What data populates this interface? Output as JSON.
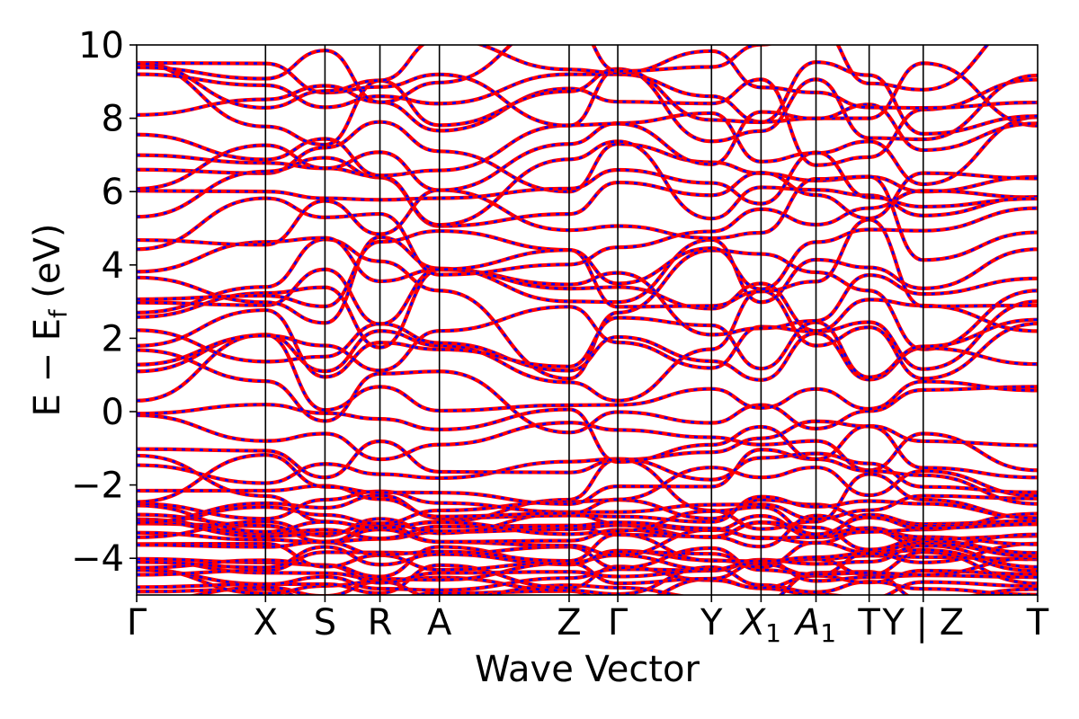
{
  "chart_data": {
    "type": "line",
    "title": "",
    "xlabel": "Wave Vector",
    "ylabel": "E − E",
    "ylabel_sub": "f",
    "ylabel_unit": " (eV)",
    "ylim": [
      -5,
      10
    ],
    "yticks": [
      10,
      8,
      6,
      4,
      2,
      0,
      -2,
      -4
    ],
    "ytick_labels": [
      "10",
      "8",
      "6",
      "4",
      "2",
      "0",
      "−2",
      "−4"
    ],
    "xlim": [
      0,
      1
    ],
    "kpath": [
      {
        "label": "Γ",
        "sub": "",
        "x": 0.0
      },
      {
        "label": "X",
        "sub": "",
        "x": 0.143
      },
      {
        "label": "S",
        "sub": "",
        "x": 0.209
      },
      {
        "label": "R",
        "sub": "",
        "x": 0.27
      },
      {
        "label": "A",
        "sub": "",
        "x": 0.336
      },
      {
        "label": "Z",
        "sub": "",
        "x": 0.48
      },
      {
        "label": "Γ",
        "sub": "",
        "x": 0.534
      },
      {
        "label": "Y",
        "sub": "",
        "x": 0.638
      },
      {
        "label": "X",
        "sub": "1",
        "x": 0.693
      },
      {
        "label": "A",
        "sub": "1",
        "x": 0.754
      },
      {
        "label": "T",
        "sub": "",
        "x": 0.813
      },
      {
        "label": "Y | Z",
        "sub": "",
        "x": 0.873
      },
      {
        "label": "T",
        "sub": "",
        "x": 1.0
      }
    ],
    "grid": false,
    "legend": "none",
    "series_colors": {
      "dft": "#ff0000",
      "model": "#0000ff"
    },
    "representative_bands": [
      {
        "x": [
          0,
          0.143,
          0.209,
          0.27,
          0.336,
          0.48,
          0.534,
          0.638,
          0.693,
          0.754,
          0.813,
          0.873,
          1.0
        ],
        "y": [
          0.3,
          2.1,
          1.1,
          2.2,
          1.8,
          0.8,
          0.3,
          1.7,
          3.3,
          1.8,
          2.3,
          0.9,
          2.4
        ]
      },
      {
        "x": [
          0,
          0.143,
          0.209,
          0.27,
          0.336,
          0.48,
          0.534,
          0.638,
          0.693,
          0.754,
          0.813,
          0.873,
          1.0
        ],
        "y": [
          2.7,
          3.4,
          4.7,
          4.1,
          3.3,
          0.9,
          2.7,
          4.4,
          4.3,
          3.8,
          3.3,
          1.7,
          3.3
        ]
      },
      {
        "x": [
          0,
          0.143,
          0.209,
          0.27,
          0.336,
          0.48,
          0.534,
          0.638,
          0.693,
          0.754,
          0.813,
          0.873,
          1.0
        ],
        "y": [
          -0.1,
          -0.8,
          -0.6,
          -1.3,
          -0.9,
          -0.3,
          -0.5,
          -0.7,
          -0.9,
          -0.8,
          -1.6,
          -0.6,
          -1.6
        ]
      },
      {
        "x": [
          0,
          0.143,
          0.209,
          0.27,
          0.336,
          0.48,
          0.534,
          0.638,
          0.693,
          0.754,
          0.813,
          0.873,
          1.0
        ],
        "y": [
          6.6,
          6.5,
          7.2,
          7.9,
          7.1,
          6.0,
          7.3,
          6.8,
          6.5,
          6.3,
          6.4,
          6.0,
          6.4
        ]
      },
      {
        "x": [
          0,
          0.143,
          0.209,
          0.27,
          0.336,
          0.48,
          0.534,
          0.638,
          0.693,
          0.754,
          0.813,
          0.873,
          1.0
        ],
        "y": [
          -1.2,
          -2.3,
          -3.0,
          -3.2,
          -3.0,
          -2.4,
          -1.3,
          -2.7,
          -3.2,
          -3.0,
          -1.7,
          -2.4,
          -2.9
        ]
      },
      {
        "x": [
          0,
          0.143,
          0.209,
          0.27,
          0.336,
          0.48,
          0.534,
          0.638,
          0.693,
          0.754,
          0.813,
          0.873,
          1.0
        ],
        "y": [
          9.2,
          8.9,
          8.3,
          8.6,
          8.4,
          9.2,
          9.2,
          8.6,
          7.9,
          8.0,
          8.0,
          9.5,
          7.8
        ]
      }
    ]
  }
}
